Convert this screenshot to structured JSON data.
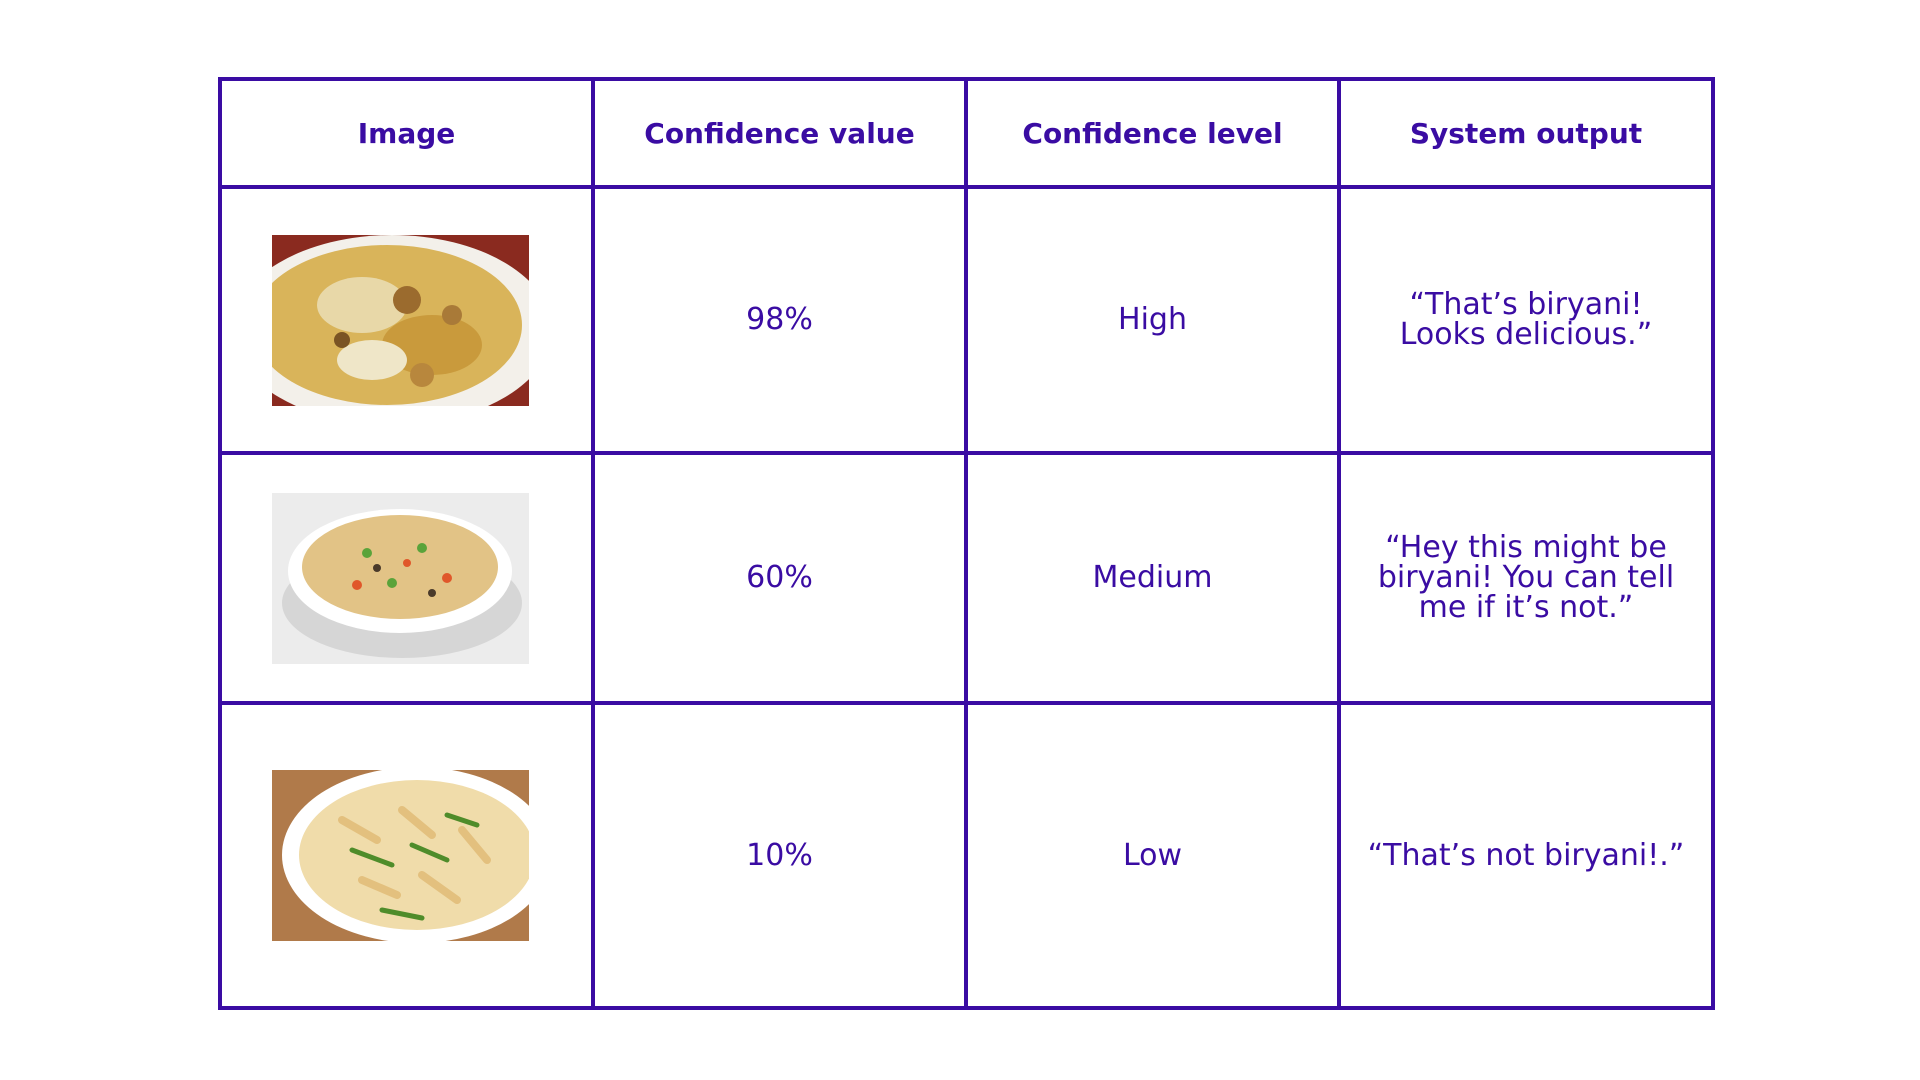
{
  "table": {
    "headers": [
      "Image",
      "Confidence value",
      "Confidence level",
      "System output"
    ],
    "rows": [
      {
        "image_icon": "biryani-photo",
        "confidence_value": "98%",
        "confidence_level": "High",
        "system_output": "“That’s biryani! Looks delicious.”"
      },
      {
        "image_icon": "fried-rice-photo",
        "confidence_value": "60%",
        "confidence_level": "Medium",
        "system_output": "“Hey this might be biryani! You can tell me if it’s not.”"
      },
      {
        "image_icon": "pasta-photo",
        "confidence_value": "10%",
        "confidence_level": "Low",
        "system_output": "“That’s not biryani!.”"
      }
    ]
  },
  "colors": {
    "accent": "#3a0ca3",
    "background": "#ffffff"
  }
}
